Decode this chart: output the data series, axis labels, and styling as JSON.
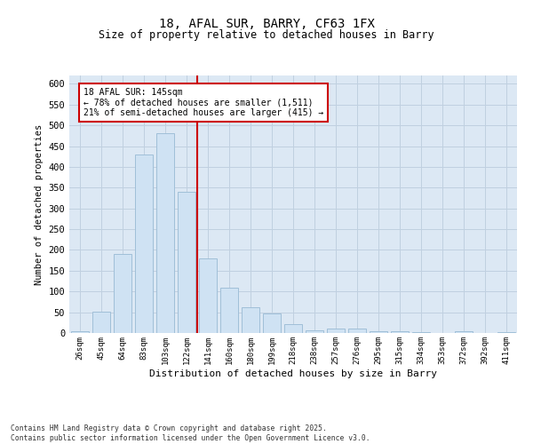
{
  "title_line1": "18, AFAL SUR, BARRY, CF63 1FX",
  "title_line2": "Size of property relative to detached houses in Barry",
  "xlabel": "Distribution of detached houses by size in Barry",
  "ylabel": "Number of detached properties",
  "categories": [
    "26sqm",
    "45sqm",
    "64sqm",
    "83sqm",
    "103sqm",
    "122sqm",
    "141sqm",
    "160sqm",
    "180sqm",
    "199sqm",
    "218sqm",
    "238sqm",
    "257sqm",
    "276sqm",
    "295sqm",
    "315sqm",
    "334sqm",
    "353sqm",
    "372sqm",
    "392sqm",
    "411sqm"
  ],
  "values": [
    5,
    52,
    190,
    430,
    480,
    340,
    180,
    110,
    62,
    47,
    22,
    7,
    10,
    10,
    5,
    5,
    2,
    0,
    5,
    0,
    2
  ],
  "bar_color": "#cfe2f3",
  "bar_edge_color": "#a0bfd8",
  "vline_color": "#cc0000",
  "annotation_text": "18 AFAL SUR: 145sqm\n← 78% of detached houses are smaller (1,511)\n21% of semi-detached houses are larger (415) →",
  "annotation_box_color": "#ffffff",
  "annotation_box_edge": "#cc0000",
  "ylim": [
    0,
    620
  ],
  "yticks": [
    0,
    50,
    100,
    150,
    200,
    250,
    300,
    350,
    400,
    450,
    500,
    550,
    600
  ],
  "grid_color": "#c0d0e0",
  "background_color": "#dce8f4",
  "footer_text": "Contains HM Land Registry data © Crown copyright and database right 2025.\nContains public sector information licensed under the Open Government Licence v3.0.",
  "font_family": "DejaVu Sans Mono"
}
